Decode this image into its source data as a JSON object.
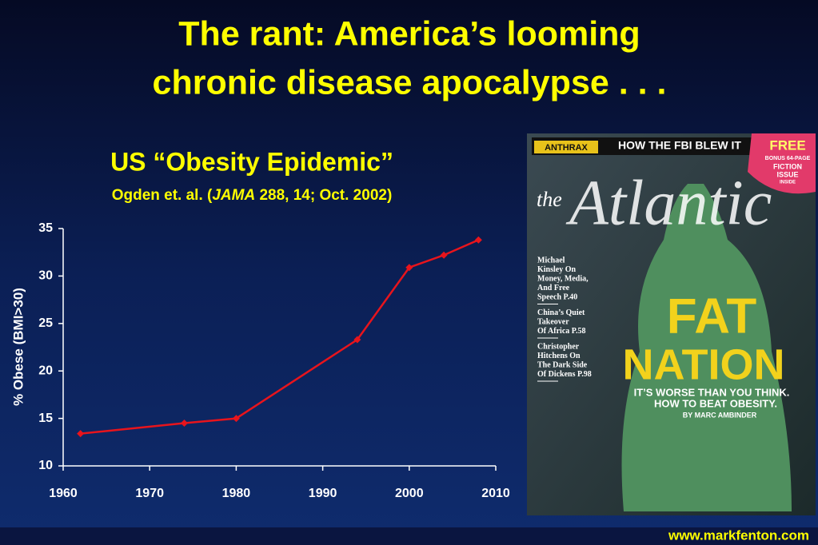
{
  "slide": {
    "title": [
      "The rant: America’s looming",
      "chronic disease apocalypse . . ."
    ],
    "footer": "www.markfenton.com"
  },
  "chart_data": {
    "type": "line",
    "title": "US “Obesity Epidemic”",
    "subtitle": [
      "Ogden et. al. (",
      "JAMA",
      " 288, 14; Oct. 2002)"
    ],
    "y_label": "% Obese (BMI>30)",
    "x": [
      1962,
      1974,
      1980,
      1994,
      2000,
      2004,
      2008
    ],
    "values": [
      13.4,
      14.5,
      15.0,
      23.3,
      30.9,
      32.2,
      33.8
    ],
    "color": "#e8141c",
    "xlim": [
      1960,
      2010
    ],
    "xticks": [
      1960,
      1970,
      1980,
      1990,
      2000,
      2010
    ],
    "ylim": [
      10,
      35
    ],
    "yticks": [
      10,
      15,
      20,
      25,
      30,
      35
    ],
    "grid": false
  },
  "magazine": {
    "banner": [
      "ANTHRAX",
      "HOW THE FBI BLEW IT"
    ],
    "free": [
      "FREE",
      "BONUS 64-PAGE",
      "FICTION",
      "ISSUE",
      "INSIDE"
    ],
    "masthead": [
      "the",
      "Atlantic"
    ],
    "stories": [
      [
        "Michael",
        "Kinsley On",
        "Money, Media,",
        "And Free",
        "Speech P.40"
      ],
      [
        "China’s Quiet",
        "Takeover",
        "Of Africa P.58"
      ],
      [
        "Christopher",
        "Hitchens On",
        "The Dark Side",
        "Of Dickens P.98"
      ]
    ],
    "cover_line": [
      "FAT",
      "NATION"
    ],
    "deck": [
      "IT’S WORSE THAN YOU THINK.",
      "HOW TO BEAT OBESITY.",
      "BY MARC AMBINDER"
    ]
  }
}
